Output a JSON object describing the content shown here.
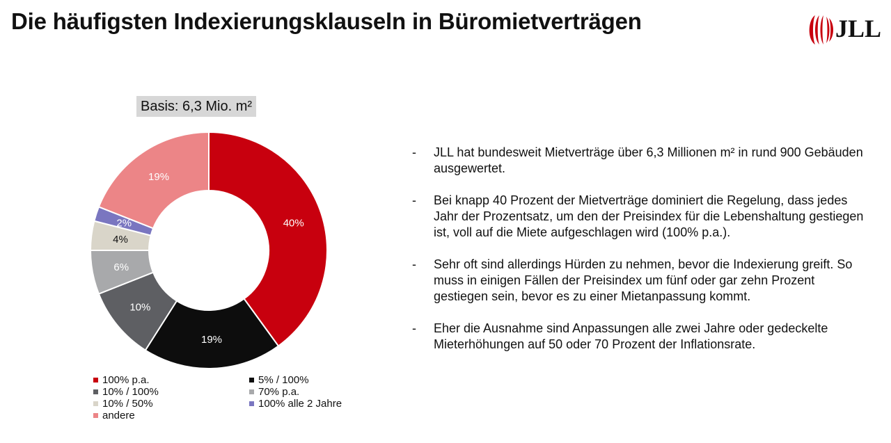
{
  "header": {
    "title": "Die häufigsten Indexierungsklauseln in Büromietverträgen",
    "logo_text": "JLL"
  },
  "basis_label": "Basis: 6,3 Mio. m²",
  "colors": {
    "red": "#c8000e",
    "black": "#0d0d0d",
    "dark_gray": "#5e5f63",
    "light_gray": "#a8a9ab",
    "beige": "#d9d5c9",
    "purple": "#7a76c0",
    "pink": "#ec8587"
  },
  "chart_data": {
    "type": "pie",
    "title": "",
    "categories": [
      "100% p.a.",
      "5% / 100%",
      "10% / 100%",
      "70% p.a.",
      "10% / 50%",
      "100% alle 2 Jahre",
      "andere"
    ],
    "values": [
      40,
      19,
      10,
      6,
      4,
      2,
      19
    ],
    "labels": [
      "40%",
      "19%",
      "10%",
      "6%",
      "4%",
      "2%",
      "19%"
    ],
    "colors": [
      "#c8000e",
      "#0d0d0d",
      "#5e5f63",
      "#a8a9ab",
      "#d9d5c9",
      "#7a76c0",
      "#ec8587"
    ],
    "label_colors": [
      "#ffffff",
      "#ffffff",
      "#ffffff",
      "#ffffff",
      "#111111",
      "#ffffff",
      "#ffffff"
    ],
    "legend_placement": "bottom"
  },
  "legend": [
    {
      "label": "100% p.a.",
      "color": "#c8000e"
    },
    {
      "label": "5% / 100%",
      "color": "#0d0d0d"
    },
    {
      "label": "10% / 100%",
      "color": "#5e5f63"
    },
    {
      "label": "70% p.a.",
      "color": "#a8a9ab"
    },
    {
      "label": "10% / 50%",
      "color": "#d9d5c9"
    },
    {
      "label": "100% alle 2 Jahre",
      "color": "#7a76c0"
    },
    {
      "label": "andere",
      "color": "#ec8587"
    }
  ],
  "bullets": [
    {
      "dash": "-",
      "text": "JLL hat bundesweit Mietverträge über 6,3 Millionen m² in rund 900 Gebäuden ausgewertet."
    },
    {
      "dash": "-",
      "text": "Bei knapp 40 Prozent der Mietverträge dominiert die Regelung, dass jedes Jahr der Prozentsatz, um den der Preisindex für die Lebenshaltung gestiegen ist, voll auf die Miete aufgeschlagen wird (100% p.a.)."
    },
    {
      "dash": "-",
      "text": "Sehr oft sind allerdings Hürden zu nehmen, bevor die Indexierung greift. So muss in einigen Fällen der Preisindex um fünf oder gar zehn Prozent gestiegen sein, bevor es zu einer Mietanpassung kommt."
    },
    {
      "dash": "-",
      "text": "Eher die Ausnahme sind Anpassungen alle zwei Jahre oder gedeckelte Mieterhöhungen auf 50 oder 70 Prozent der Inflationsrate."
    }
  ]
}
